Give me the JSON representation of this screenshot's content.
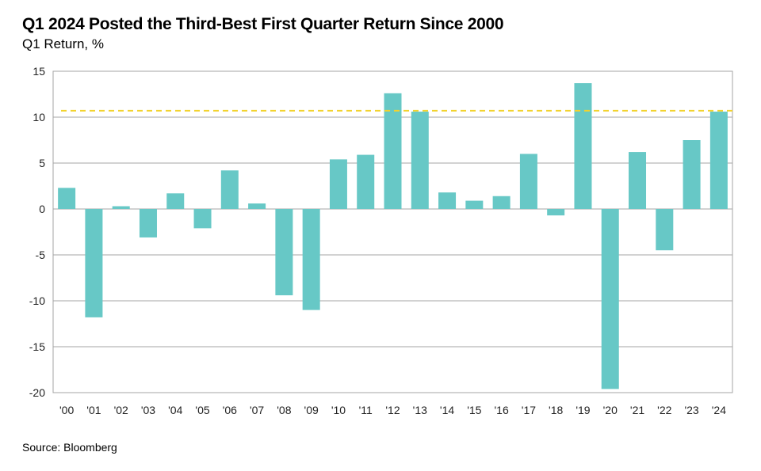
{
  "chart_data": {
    "type": "bar",
    "title": "Q1 2024 Posted the Third-Best First Quarter Return Since 2000",
    "subtitle": "Q1 Return, %",
    "source": "Source: Bloomberg",
    "categories": [
      "'00",
      "'01",
      "'02",
      "'03",
      "'04",
      "'05",
      "'06",
      "'07",
      "'08",
      "'09",
      "'10",
      "'11",
      "'12",
      "'13",
      "'14",
      "'15",
      "'16",
      "'17",
      "'18",
      "'19",
      "'20",
      "'21",
      "'22",
      "'23",
      "'24"
    ],
    "values": [
      2.3,
      -11.8,
      0.3,
      -3.1,
      1.7,
      -2.1,
      4.2,
      0.6,
      -9.4,
      -11.0,
      5.4,
      5.9,
      12.6,
      10.6,
      1.8,
      0.9,
      1.4,
      6.0,
      -0.7,
      13.7,
      -19.6,
      6.2,
      -4.5,
      7.5,
      10.6
    ],
    "reference_line": 10.7,
    "ylim": [
      -20,
      15
    ],
    "yticks": [
      15,
      10,
      5,
      0,
      -5,
      -10,
      -15,
      -20
    ],
    "grid": true,
    "colors": {
      "bar": "#67C8C6",
      "reference_line": "#F2D22E",
      "grid": "#A6A6A6"
    }
  }
}
